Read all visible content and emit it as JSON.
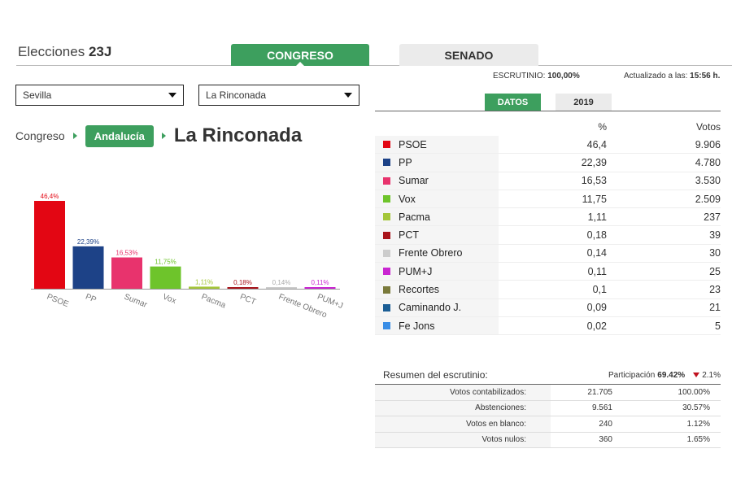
{
  "header": {
    "title_prefix": "Elecciones",
    "title_bold": "23J",
    "tabs": [
      {
        "label": "CONGRESO",
        "active": true
      },
      {
        "label": "SENADO",
        "active": false
      }
    ]
  },
  "filters": {
    "province": "Sevilla",
    "municipality": "La Rinconada"
  },
  "breadcrumb": {
    "home": "Congreso",
    "region": "Andalucía",
    "current": "La Rinconada"
  },
  "status": {
    "escrutinio_label": "ESCRUTINIO:",
    "escrutinio_value": "100,00%",
    "updated_label": "Actualizado a las:",
    "updated_value": "15:56 h."
  },
  "subtabs": [
    {
      "label": "DATOS",
      "active": true
    },
    {
      "label": "2019",
      "active": false
    }
  ],
  "results": {
    "header_pct": "%",
    "header_votes": "Votos",
    "rows": [
      {
        "party": "PSOE",
        "pct": "46,4",
        "votes": "9.906",
        "color": "#e30613"
      },
      {
        "party": "PP",
        "pct": "22,39",
        "votes": "4.780",
        "color": "#1d4287"
      },
      {
        "party": "Sumar",
        "pct": "16,53",
        "votes": "3.530",
        "color": "#e8336d"
      },
      {
        "party": "Vox",
        "pct": "11,75",
        "votes": "2.509",
        "color": "#6ec42b"
      },
      {
        "party": "Pacma",
        "pct": "1,11",
        "votes": "237",
        "color": "#a4c639"
      },
      {
        "party": "PCT",
        "pct": "0,18",
        "votes": "39",
        "color": "#a8141b"
      },
      {
        "party": "Frente Obrero",
        "pct": "0,14",
        "votes": "30",
        "color": "#cccccc"
      },
      {
        "party": "PUM+J",
        "pct": "0,11",
        "votes": "25",
        "color": "#c925d1"
      },
      {
        "party": "Recortes",
        "pct": "0,1",
        "votes": "23",
        "color": "#7a7a3b"
      },
      {
        "party": "Caminando J.",
        "pct": "0,09",
        "votes": "21",
        "color": "#1b5e95"
      },
      {
        "party": "Fe Jons",
        "pct": "0,02",
        "votes": "5",
        "color": "#3a8ee6"
      }
    ]
  },
  "summary": {
    "title": "Resumen del escrutinio:",
    "participation_label": "Participación",
    "participation_value": "69.42%",
    "participation_change": "2.1%",
    "rows": [
      {
        "label": "Votos contabilizados:",
        "count": "21.705",
        "pct": "100.00%"
      },
      {
        "label": "Abstenciones:",
        "count": "9.561",
        "pct": "30.57%"
      },
      {
        "label": "Votos en blanco:",
        "count": "240",
        "pct": "1.12%"
      },
      {
        "label": "Votos nulos:",
        "count": "360",
        "pct": "1.65%"
      }
    ]
  },
  "chart_data": {
    "type": "bar",
    "categories": [
      "PSOE",
      "PP",
      "Sumar",
      "Vox",
      "Pacma",
      "PCT",
      "Frente Obrero",
      "PUM+J"
    ],
    "values": [
      46.4,
      22.39,
      16.53,
      11.75,
      1.11,
      0.18,
      0.14,
      0.11
    ],
    "value_labels": [
      "46,4%",
      "22,39%",
      "16,53%",
      "11,75%",
      "1,11%",
      "0,18%",
      "0,14%",
      "0,11%"
    ],
    "colors": [
      "#e30613",
      "#1d4287",
      "#e8336d",
      "#6ec42b",
      "#a4c639",
      "#a8141b",
      "#cccccc",
      "#c925d1"
    ],
    "title": "",
    "xlabel": "",
    "ylabel": "",
    "ylim": [
      0,
      46.4
    ]
  }
}
